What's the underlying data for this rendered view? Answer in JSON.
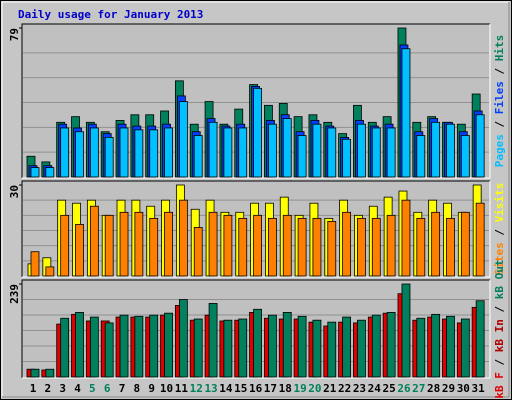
{
  "chart_data": [
    {
      "type": "bar",
      "title": "Daily usage for January 2013",
      "legend_separator": " / ",
      "legend_reverse": true,
      "ylim": [
        0,
        79
      ],
      "yticks": [
        79
      ],
      "series": [
        {
          "name": "Hits",
          "color": "#00805C",
          "values": [
            11,
            8,
            29,
            32,
            29,
            24,
            30,
            33,
            33,
            35,
            51,
            28,
            40,
            28,
            36,
            49,
            38,
            39,
            32,
            33,
            29,
            23,
            38,
            29,
            32,
            79,
            29,
            32,
            29,
            28,
            44
          ]
        },
        {
          "name": "Files",
          "color": "#0040FF",
          "values": [
            6,
            6,
            28,
            26,
            28,
            23,
            28,
            27,
            27,
            28,
            43,
            24,
            31,
            27,
            28,
            48,
            30,
            33,
            24,
            30,
            27,
            21,
            30,
            27,
            28,
            70,
            24,
            31,
            29,
            24,
            35
          ]
        },
        {
          "name": "Pages",
          "color": "#00C0FF",
          "values": [
            5,
            5,
            26,
            24,
            26,
            21,
            26,
            25,
            25,
            26,
            40,
            22,
            29,
            26,
            26,
            47,
            28,
            31,
            22,
            28,
            26,
            20,
            28,
            26,
            26,
            68,
            22,
            29,
            28,
            22,
            33
          ]
        }
      ]
    },
    {
      "type": "bar",
      "legend_separator": " / ",
      "legend_reverse": true,
      "ylim": [
        0,
        30
      ],
      "yticks": [
        30
      ],
      "series": [
        {
          "name": "Visits",
          "color": "#FFFF00",
          "values": [
            4,
            6,
            25,
            24,
            25,
            20,
            25,
            25,
            23,
            25,
            30,
            22,
            25,
            21,
            21,
            24,
            24,
            26,
            20,
            24,
            19,
            25,
            20,
            23,
            26,
            28,
            21,
            25,
            24,
            21,
            30
          ]
        },
        {
          "name": "Sites",
          "color": "#FF8000",
          "values": [
            8,
            3,
            20,
            17,
            23,
            20,
            21,
            21,
            19,
            21,
            25,
            16,
            21,
            20,
            19,
            20,
            19,
            20,
            19,
            19,
            18,
            21,
            19,
            19,
            20,
            25,
            19,
            21,
            19,
            21,
            24
          ]
        }
      ]
    },
    {
      "type": "bar",
      "legend_separator": " / ",
      "legend_reverse": false,
      "ylim": [
        0,
        239
      ],
      "yticks": [
        239
      ],
      "categories": [
        "1",
        "2",
        "3",
        "4",
        "5",
        "6",
        "7",
        "8",
        "9",
        "10",
        "11",
        "12",
        "13",
        "14",
        "15",
        "16",
        "17",
        "18",
        "19",
        "20",
        "21",
        "22",
        "23",
        "24",
        "25",
        "26",
        "27",
        "28",
        "29",
        "30",
        "31"
      ],
      "category_colors": [
        "#000000",
        "#000000",
        "#000000",
        "#000000",
        "#00805C",
        "#00805C",
        "#000000",
        "#000000",
        "#000000",
        "#000000",
        "#000000",
        "#00805C",
        "#00805C",
        "#000000",
        "#000000",
        "#000000",
        "#000000",
        "#000000",
        "#00805C",
        "#00805C",
        "#000000",
        "#000000",
        "#000000",
        "#000000",
        "#000000",
        "#00805C",
        "#00805C",
        "#000000",
        "#000000",
        "#000000",
        "#000000"
      ],
      "series": [
        {
          "name": "kB F",
          "color": "#E00000",
          "values": [
            20,
            18,
            136,
            161,
            144,
            144,
            154,
            154,
            154,
            159,
            184,
            146,
            159,
            144,
            146,
            166,
            151,
            149,
            149,
            141,
            131,
            141,
            139,
            154,
            164,
            214,
            146,
            154,
            149,
            139,
            179
          ]
        },
        {
          "name": "kB In",
          "color": "#B00000",
          "values": [
            0,
            0,
            0,
            0,
            0,
            0,
            0,
            0,
            0,
            0,
            0,
            0,
            0,
            0,
            0,
            0,
            0,
            0,
            0,
            0,
            0,
            0,
            0,
            0,
            0,
            0,
            0,
            0,
            0,
            0,
            0
          ]
        },
        {
          "name": "kB Out",
          "color": "#00805C",
          "values": [
            20,
            20,
            151,
            166,
            154,
            139,
            159,
            156,
            159,
            164,
            199,
            149,
            189,
            146,
            149,
            174,
            159,
            166,
            156,
            146,
            141,
            154,
            146,
            159,
            166,
            239,
            151,
            161,
            156,
            149,
            196
          ]
        }
      ]
    }
  ]
}
